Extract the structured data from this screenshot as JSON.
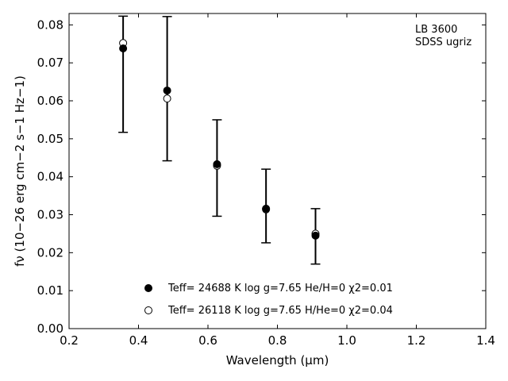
{
  "chart_data": {
    "type": "scatter",
    "annotation": [
      "LB 3600",
      "SDSS ugriz"
    ],
    "xlabel": "Wavelength (μm)",
    "ylabel": "fν (10−26 erg cm−2 s−1 Hz−1)",
    "xlim": [
      0.2,
      1.4
    ],
    "ylim": [
      0.0,
      0.083
    ],
    "xticks": [
      "0.2",
      "0.4",
      "0.6",
      "0.8",
      "1.0",
      "1.2",
      "1.4"
    ],
    "yticks": [
      "0.00",
      "0.01",
      "0.02",
      "0.03",
      "0.04",
      "0.05",
      "0.06",
      "0.07",
      "0.08"
    ],
    "xtick_values": [
      0.2,
      0.4,
      0.6,
      0.8,
      1.0,
      1.2,
      1.4
    ],
    "ytick_values": [
      0.0,
      0.01,
      0.02,
      0.03,
      0.04,
      0.05,
      0.06,
      0.07,
      0.08
    ],
    "observed": {
      "x": [
        0.3557,
        0.4825,
        0.6261,
        0.7672,
        0.9097
      ],
      "y": [
        0.067,
        0.0632,
        0.0423,
        0.0323,
        0.0243
      ],
      "yerr": [
        0.0153,
        0.019,
        0.0127,
        0.0097,
        0.0073
      ]
    },
    "series": [
      {
        "name": "Teff= 24688 K  log g=7.65  He/H=0  χ2=0.01",
        "marker": "filled-circle",
        "color": "#000000",
        "x": [
          0.3557,
          0.4825,
          0.6261,
          0.7672,
          0.9097
        ],
        "y": [
          0.0738,
          0.0627,
          0.0433,
          0.0316,
          0.0245
        ]
      },
      {
        "name": "Teff= 26118 K  log g=7.65  H/He=0  χ2=0.04",
        "marker": "open-circle",
        "color": "#000000",
        "x": [
          0.3557,
          0.4825,
          0.6261,
          0.7672,
          0.9097
        ],
        "y": [
          0.0752,
          0.0606,
          0.0429,
          0.0314,
          0.025
        ]
      }
    ],
    "legend_placement": "lower-center",
    "grid": false
  }
}
